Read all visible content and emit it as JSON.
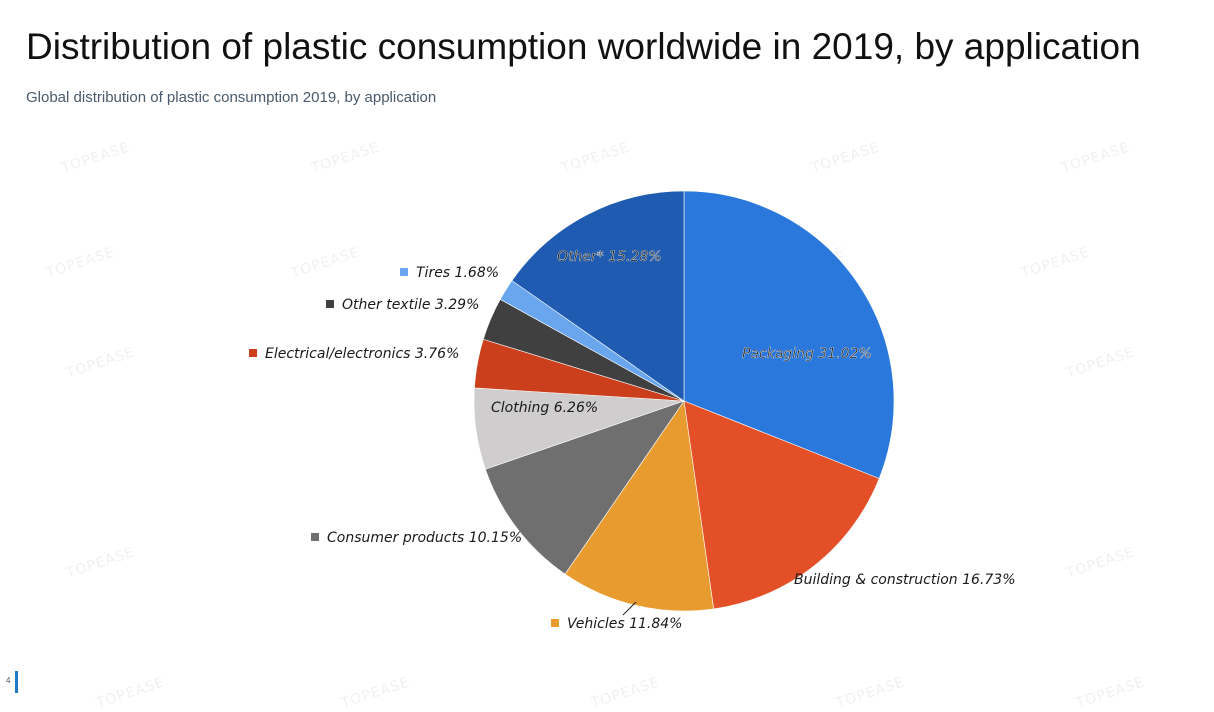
{
  "header": {
    "title": "Distribution of plastic consumption worldwide in 2019, by application",
    "subtitle": "Global distribution of plastic consumption 2019, by application"
  },
  "watermark": "TOPEASE",
  "slide_number": "4",
  "chart_data": {
    "type": "pie",
    "title": "Distribution of plastic consumption worldwide in 2019, by application",
    "start_angle_deg": 0,
    "direction": "clockwise",
    "slices": [
      {
        "label": "Packaging",
        "value": 31.02,
        "display": "Packaging 31.02%",
        "color": "#2a78dc",
        "label_placement": "inside"
      },
      {
        "label": "Building & construction",
        "value": 16.73,
        "display": "Building & construction 16.73%",
        "color": "#e35028",
        "label_placement": "outside"
      },
      {
        "label": "Vehicles",
        "value": 11.84,
        "display": "Vehicles 11.84%",
        "color": "#e89c2f",
        "label_placement": "outside"
      },
      {
        "label": "Consumer products",
        "value": 10.15,
        "display": "Consumer products 10.15%",
        "color": "#6f6f6f",
        "label_placement": "outside"
      },
      {
        "label": "Clothing",
        "value": 6.26,
        "display": "Clothing 6.26%",
        "color": "#cfcdcd",
        "label_placement": "inside"
      },
      {
        "label": "Electrical/electronics",
        "value": 3.76,
        "display": "Electrical/electronics 3.76%",
        "color": "#cc3f1c",
        "label_placement": "outside"
      },
      {
        "label": "Other textile",
        "value": 3.29,
        "display": "Other textile 3.29%",
        "color": "#404040",
        "label_placement": "outside"
      },
      {
        "label": "Tires",
        "value": 1.68,
        "display": "Tires 1.68%",
        "color": "#6aa6ee",
        "label_placement": "outside"
      },
      {
        "label": "Other*",
        "value": 15.28,
        "display": "Other* 15.28%",
        "color": "#1f5bb0",
        "label_placement": "inside"
      }
    ]
  }
}
